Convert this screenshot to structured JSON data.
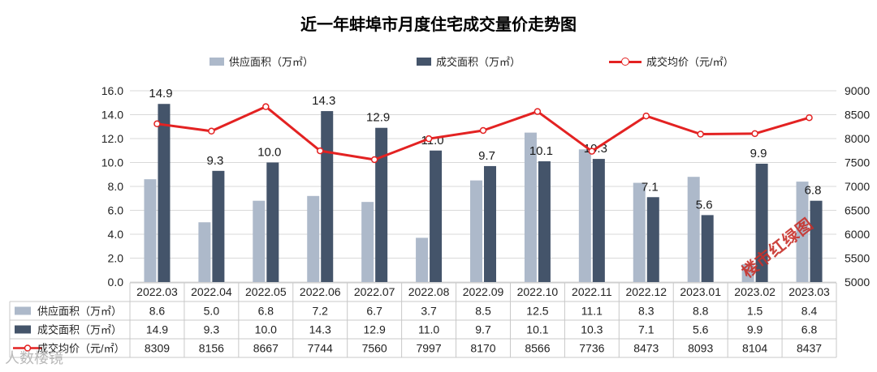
{
  "chart_data": {
    "type": "bar",
    "title": "近一年蚌埠市月度住宅成交量价走势图",
    "categories": [
      "2022.03",
      "2022.04",
      "2022.05",
      "2022.06",
      "2022.07",
      "2022.08",
      "2022.09",
      "2022.10",
      "2022.11",
      "2022.12",
      "2023.01",
      "2023.02",
      "2023.03"
    ],
    "y_left": {
      "min": 0,
      "max": 16,
      "step": 2,
      "ticks": [
        "0.0",
        "2.0",
        "4.0",
        "6.0",
        "8.0",
        "10.0",
        "12.0",
        "14.0",
        "16.0"
      ]
    },
    "y_right": {
      "min": 5000,
      "max": 9000,
      "step": 500,
      "ticks": [
        "5000",
        "5500",
        "6000",
        "6500",
        "7000",
        "7500",
        "8000",
        "8500",
        "9000"
      ]
    },
    "legend_position": "top",
    "series": [
      {
        "name": "供应面积（万㎡）",
        "type": "bar",
        "axis": "left",
        "color": "#adb9ca",
        "values": [
          8.6,
          5.0,
          6.8,
          7.2,
          6.7,
          3.7,
          8.5,
          12.5,
          11.1,
          8.3,
          8.8,
          1.5,
          8.4
        ],
        "labels": [
          "8.6",
          "5.0",
          "6.8",
          "7.2",
          "6.7",
          "3.7",
          "8.5",
          "12.5",
          "11.1",
          "8.3",
          "8.8",
          "1.5",
          "8.4"
        ]
      },
      {
        "name": "成交面积（万㎡）",
        "type": "bar",
        "axis": "left",
        "color": "#44546a",
        "values": [
          14.9,
          9.3,
          10.0,
          14.3,
          12.9,
          11.0,
          9.7,
          10.1,
          10.3,
          7.1,
          5.6,
          9.9,
          6.8
        ],
        "labels": [
          "14.9",
          "9.3",
          "10.0",
          "14.3",
          "12.9",
          "11.0",
          "9.7",
          "10.1",
          "10.3",
          "7.1",
          "5.6",
          "9.9",
          "6.8"
        ]
      },
      {
        "name": "成交均价（元/㎡）",
        "type": "line",
        "axis": "right",
        "color": "#e32222",
        "values": [
          8309,
          8156,
          8667,
          7744,
          7560,
          7997,
          8170,
          8566,
          7736,
          8473,
          8093,
          8104,
          8437
        ],
        "labels": [
          "8309",
          "8156",
          "8667",
          "7744",
          "7560",
          "7997",
          "8170",
          "8566",
          "7736",
          "8473",
          "8093",
          "8104",
          "8437"
        ]
      }
    ]
  },
  "watermarks": {
    "red_stamp": "楼市红绿图",
    "corner": "人数楼镜"
  }
}
